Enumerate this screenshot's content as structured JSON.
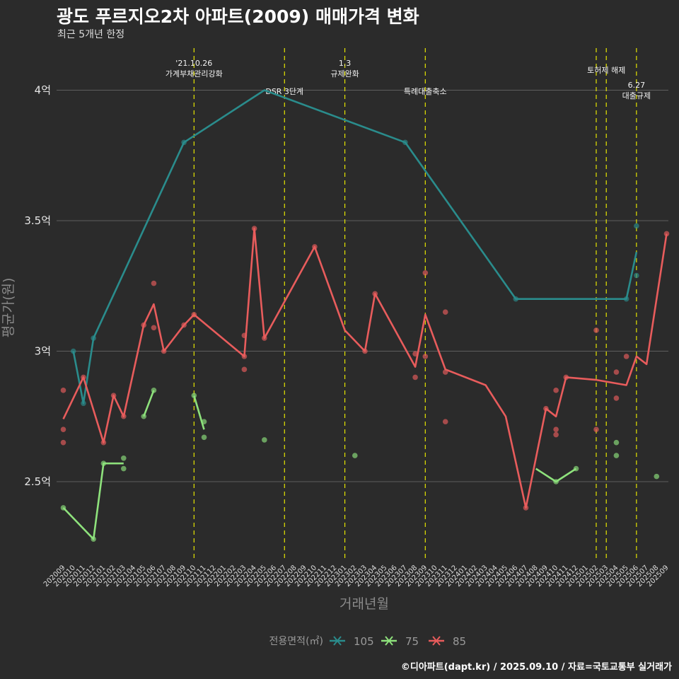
{
  "header": {
    "title": "광도 푸르지오2차 아파트(2009) 매매가격 변화",
    "subtitle": "최근 5개년 한정"
  },
  "footer": {
    "caption": "©디아파트(dapt.kr) / 2025.09.10 / 자료=국토교통부 실거래가"
  },
  "colors": {
    "105": "#2a8c8c",
    "75": "#8ee27c",
    "85": "#e85c5c",
    "event": "#e5e500"
  },
  "chart_data": {
    "type": "line",
    "title": "광도 푸르지오2차 아파트(2009) 매매가격 변화",
    "subtitle": "최근 5개년 한정",
    "xlabel": "거래년월",
    "ylabel": "평균가(원)",
    "ylim": [
      2.2,
      4.15
    ],
    "yticks": [
      {
        "value": 2.5,
        "label": "2.5억"
      },
      {
        "value": 3.0,
        "label": "3억"
      },
      {
        "value": 3.5,
        "label": "3.5억"
      },
      {
        "value": 4.0,
        "label": "4억"
      }
    ],
    "categories": [
      "202009",
      "202010",
      "202011",
      "202012",
      "202101",
      "202102",
      "202103",
      "202104",
      "202105",
      "202106",
      "202107",
      "202108",
      "202109",
      "202110",
      "202111",
      "202112",
      "202201",
      "202202",
      "202203",
      "202204",
      "202205",
      "202206",
      "202207",
      "202208",
      "202209",
      "202210",
      "202211",
      "202212",
      "202301",
      "202302",
      "202303",
      "202304",
      "202305",
      "202306",
      "202307",
      "202308",
      "202309",
      "202310",
      "202311",
      "202312",
      "202401",
      "202402",
      "202403",
      "202404",
      "202405",
      "202406",
      "202407",
      "202408",
      "202409",
      "202410",
      "202411",
      "202412",
      "202501",
      "202502",
      "202503",
      "202504",
      "202505",
      "202506",
      "202507",
      "202508",
      "202509"
    ],
    "grid": true,
    "legend": {
      "title": "전용면적(㎡)",
      "position": "bottom",
      "entries": [
        "105",
        "75",
        "85"
      ]
    },
    "series": [
      {
        "name": "105",
        "line": [
          [
            [
              "202010",
              3.0
            ],
            [
              "202011",
              2.8
            ],
            [
              "202012",
              3.05
            ],
            [
              "202109",
              3.8
            ],
            [
              "202205",
              4.0
            ],
            [
              "202307",
              3.8
            ],
            [
              "202406",
              3.2
            ],
            [
              "202505",
              3.2
            ],
            [
              "202506",
              3.38
            ]
          ]
        ],
        "points": [
          [
            "202010",
            3.0
          ],
          [
            "202011",
            2.8
          ],
          [
            "202012",
            3.05
          ],
          [
            "202109",
            3.8
          ],
          [
            "202307",
            3.8
          ],
          [
            "202406",
            3.2
          ],
          [
            "202505",
            3.2
          ],
          [
            "202506",
            3.48
          ],
          [
            "202506",
            3.29
          ]
        ]
      },
      {
        "name": "75",
        "line": [
          [
            [
              "202009",
              2.4
            ],
            [
              "202012",
              2.28
            ],
            [
              "202101",
              2.57
            ],
            [
              "202103",
              2.57
            ]
          ],
          [
            [
              "202105",
              2.75
            ],
            [
              "202106",
              2.85
            ]
          ],
          [
            [
              "202110",
              2.83
            ],
            [
              "202111",
              2.7
            ]
          ],
          [
            [
              "202408",
              2.55
            ],
            [
              "202410",
              2.5
            ],
            [
              "202412",
              2.55
            ]
          ]
        ],
        "points": [
          [
            "202009",
            2.4
          ],
          [
            "202012",
            2.28
          ],
          [
            "202101",
            2.57
          ],
          [
            "202103",
            2.59
          ],
          [
            "202103",
            2.55
          ],
          [
            "202105",
            2.75
          ],
          [
            "202106",
            2.85
          ],
          [
            "202110",
            2.83
          ],
          [
            "202111",
            2.73
          ],
          [
            "202111",
            2.67
          ],
          [
            "202205",
            2.66
          ],
          [
            "202302",
            2.6
          ],
          [
            "202410",
            2.5
          ],
          [
            "202412",
            2.55
          ],
          [
            "202504",
            2.65
          ],
          [
            "202504",
            2.6
          ],
          [
            "202508",
            2.52
          ]
        ]
      },
      {
        "name": "85",
        "line": [
          [
            [
              "202009",
              2.74
            ],
            [
              "202011",
              2.9
            ],
            [
              "202101",
              2.65
            ],
            [
              "202102",
              2.83
            ],
            [
              "202103",
              2.75
            ],
            [
              "202105",
              3.1
            ],
            [
              "202106",
              3.18
            ],
            [
              "202107",
              3.0
            ],
            [
              "202109",
              3.1
            ],
            [
              "202110",
              3.14
            ],
            [
              "202203",
              2.98
            ],
            [
              "202204",
              3.47
            ],
            [
              "202205",
              3.05
            ],
            [
              "202210",
              3.4
            ],
            [
              "202301",
              3.08
            ],
            [
              "202303",
              3.0
            ],
            [
              "202304",
              3.22
            ],
            [
              "202308",
              2.94
            ],
            [
              "202309",
              3.14
            ],
            [
              "202311",
              2.93
            ],
            [
              "202403",
              2.87
            ],
            [
              "202405",
              2.75
            ],
            [
              "202407",
              2.4
            ],
            [
              "202409",
              2.78
            ],
            [
              "202410",
              2.75
            ],
            [
              "202411",
              2.9
            ],
            [
              "202502",
              2.89
            ],
            [
              "202505",
              2.87
            ],
            [
              "202506",
              2.98
            ],
            [
              "202507",
              2.95
            ],
            [
              "202509",
              3.45
            ]
          ]
        ],
        "points": [
          [
            "202009",
            2.85
          ],
          [
            "202009",
            2.7
          ],
          [
            "202009",
            2.65
          ],
          [
            "202011",
            2.9
          ],
          [
            "202101",
            2.65
          ],
          [
            "202102",
            2.83
          ],
          [
            "202103",
            2.75
          ],
          [
            "202105",
            3.1
          ],
          [
            "202106",
            3.26
          ],
          [
            "202106",
            3.09
          ],
          [
            "202107",
            3.0
          ],
          [
            "202109",
            3.1
          ],
          [
            "202110",
            3.14
          ],
          [
            "202203",
            3.06
          ],
          [
            "202203",
            2.98
          ],
          [
            "202203",
            2.93
          ],
          [
            "202204",
            3.47
          ],
          [
            "202205",
            3.05
          ],
          [
            "202210",
            3.4
          ],
          [
            "202303",
            3.0
          ],
          [
            "202304",
            3.22
          ],
          [
            "202308",
            2.99
          ],
          [
            "202308",
            2.9
          ],
          [
            "202309",
            3.3
          ],
          [
            "202309",
            2.98
          ],
          [
            "202311",
            3.15
          ],
          [
            "202311",
            2.92
          ],
          [
            "202311",
            2.73
          ],
          [
            "202407",
            2.4
          ],
          [
            "202409",
            2.78
          ],
          [
            "202410",
            2.85
          ],
          [
            "202410",
            2.7
          ],
          [
            "202410",
            2.68
          ],
          [
            "202411",
            2.9
          ],
          [
            "202502",
            3.08
          ],
          [
            "202502",
            2.7
          ],
          [
            "202504",
            2.92
          ],
          [
            "202504",
            2.82
          ],
          [
            "202505",
            2.98
          ],
          [
            "202509",
            3.45
          ]
        ]
      }
    ],
    "events": [
      {
        "x": "202110",
        "label": "'21.10.26\n가계부채관리강화",
        "row": 1
      },
      {
        "x": "202207",
        "label": "DSR 3단계",
        "row": 3
      },
      {
        "x": "202301",
        "label": "1.3\n규제완화",
        "row": 1
      },
      {
        "x": "202309",
        "label": "특례대출축소",
        "row": 3
      },
      {
        "x": "202502",
        "label": "",
        "row": 0
      },
      {
        "x": "202503",
        "label": "토허제 해제",
        "row": 2
      },
      {
        "x": "202506",
        "label": "6.27\n대출규제",
        "row": 4
      }
    ]
  }
}
